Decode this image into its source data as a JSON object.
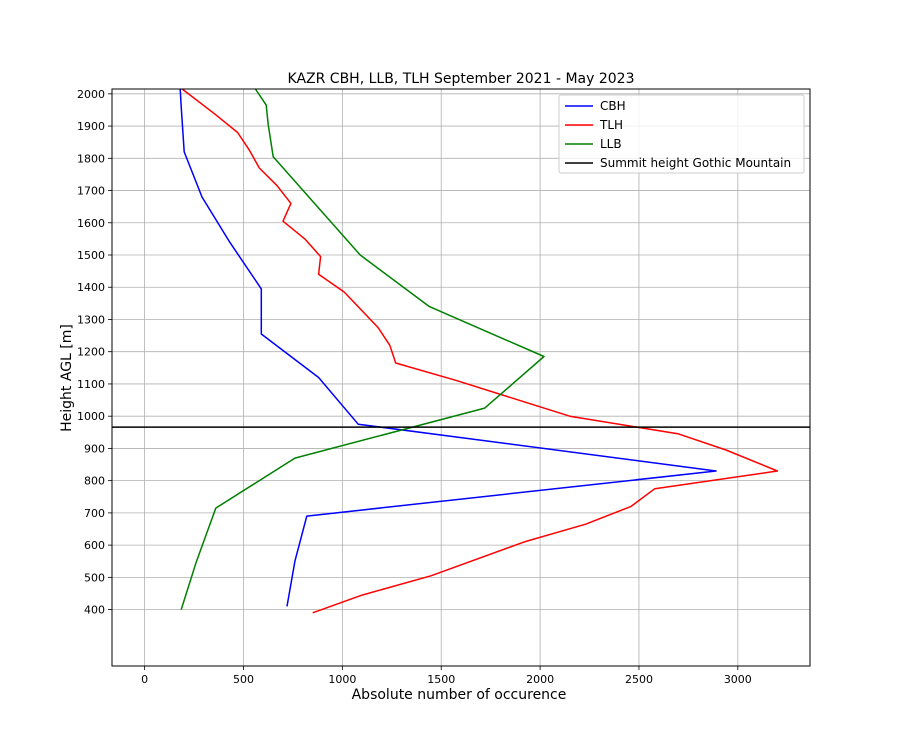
{
  "chart_data": {
    "type": "line",
    "title": "KAZR CBH, LLB, TLH September 2021 - May 2023",
    "xlabel": "Absolute number of occurence",
    "ylabel": "Height AGL [m]",
    "xlim": [
      -165,
      3365
    ],
    "ylim": [
      225,
      2015
    ],
    "xticks": [
      0,
      500,
      1000,
      1500,
      2000,
      2500,
      3000
    ],
    "yticks": [
      400,
      500,
      600,
      700,
      800,
      900,
      1000,
      1100,
      1200,
      1300,
      1400,
      1500,
      1600,
      1700,
      1800,
      1900,
      2000
    ],
    "grid": true,
    "legend_position": "top-right",
    "series": [
      {
        "name": "CBH",
        "color": "#0000ff",
        "x": [
          720,
          760,
          820,
          2890,
          1080,
          880,
          590,
          590,
          430,
          290,
          200,
          185,
          180
        ],
        "y": [
          410,
          550,
          690,
          830,
          975,
          1120,
          1255,
          1395,
          1540,
          1680,
          1820,
          1960,
          2015
        ]
      },
      {
        "name": "TLH",
        "color": "#ff0000",
        "x": [
          850,
          1100,
          1450,
          1920,
          2230,
          2460,
          2580,
          3200,
          2940,
          2700,
          2150,
          1580,
          1270,
          1240,
          1180,
          1010,
          880,
          890,
          810,
          700,
          740,
          670,
          580,
          530,
          470,
          360,
          190
        ],
        "y": [
          390,
          445,
          505,
          610,
          665,
          720,
          775,
          830,
          895,
          945,
          1000,
          1110,
          1165,
          1220,
          1275,
          1385,
          1440,
          1495,
          1550,
          1605,
          1660,
          1715,
          1770,
          1825,
          1880,
          1935,
          2015
        ]
      },
      {
        "name": "LLB",
        "color": "#008000",
        "x": [
          185,
          260,
          360,
          760,
          1720,
          2020,
          1440,
          1090,
          650,
          625,
          615,
          560
        ],
        "y": [
          400,
          545,
          715,
          870,
          1025,
          1185,
          1340,
          1500,
          1805,
          1905,
          1965,
          2015
        ]
      },
      {
        "name": "Summit height Gothic Mountain",
        "color": "#000000",
        "x": [
          -165,
          3365
        ],
        "y": [
          966,
          966
        ]
      }
    ]
  }
}
